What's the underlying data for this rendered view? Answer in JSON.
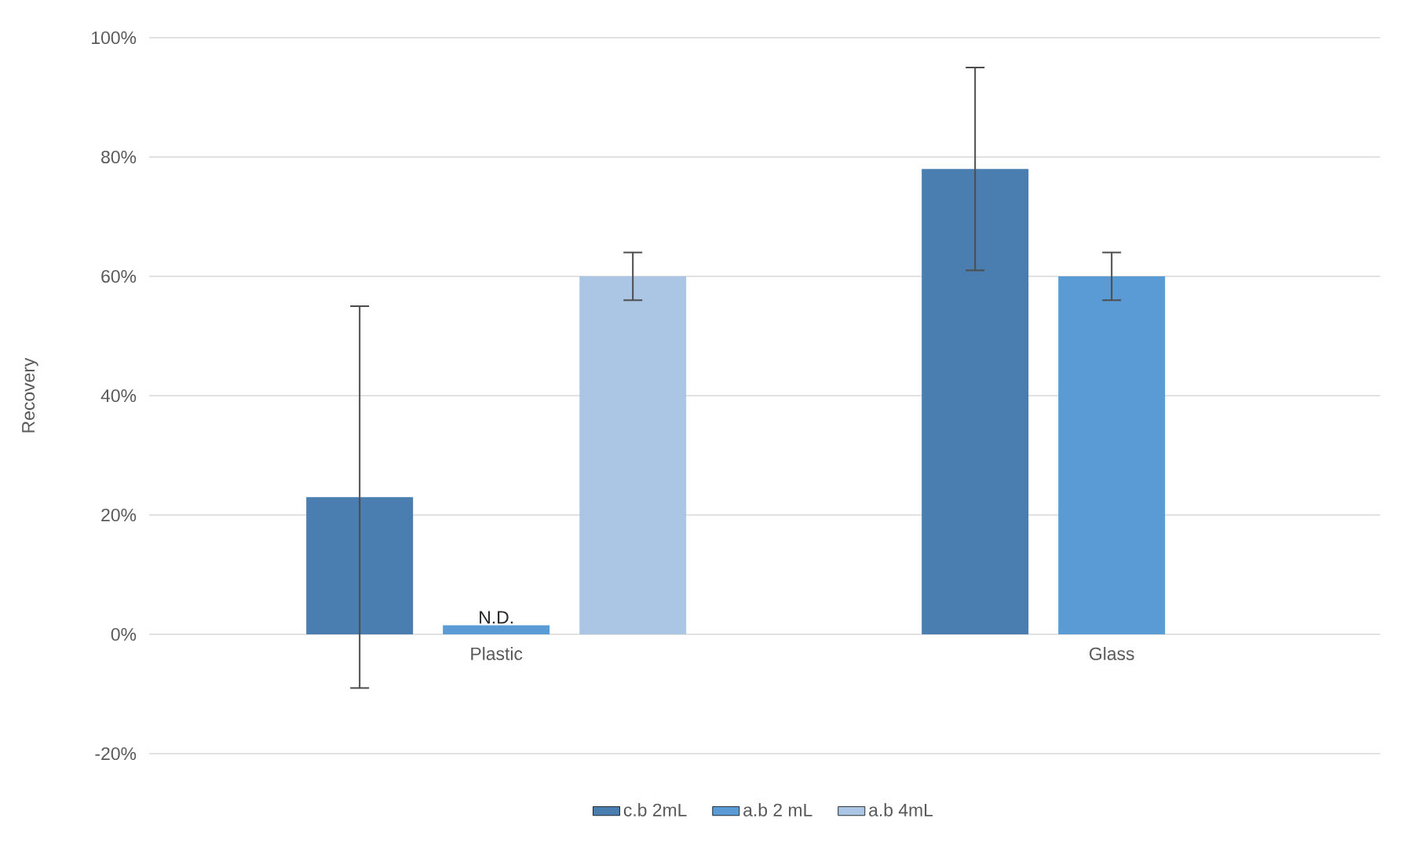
{
  "chart_data": {
    "type": "bar",
    "ylabel": "Recovery",
    "categories": [
      "Plastic",
      "Glass"
    ],
    "series": [
      {
        "name": "c.b 2mL",
        "color": "#4a7eb0",
        "values": [
          23,
          78
        ],
        "errors": [
          32,
          17
        ]
      },
      {
        "name": "a.b 2 mL",
        "color": "#5b9bd5",
        "values": [
          1.5,
          60
        ],
        "errors": [
          null,
          4
        ],
        "value_labels": [
          "N.D.",
          null
        ]
      },
      {
        "name": "a.b 4mL",
        "color": "#abc5e5",
        "values": [
          60,
          null
        ],
        "errors": [
          4,
          null
        ]
      }
    ],
    "ylim": [
      -20,
      100
    ],
    "yticks": [
      {
        "value": -20,
        "label": "-20%"
      },
      {
        "value": 0,
        "label": "0%"
      },
      {
        "value": 20,
        "label": "20%"
      },
      {
        "value": 40,
        "label": "40%"
      },
      {
        "value": 60,
        "label": "60%"
      },
      {
        "value": 80,
        "label": "80%"
      },
      {
        "value": 100,
        "label": "100%"
      }
    ],
    "grid": "y",
    "legend": "bottom"
  }
}
